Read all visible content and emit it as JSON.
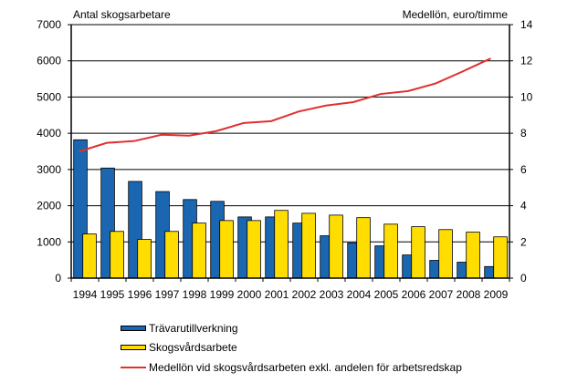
{
  "chart_data": {
    "type": "bar",
    "left_axis_title": "Antal skogsarbetare",
    "right_axis_title": "Medellön, euro/timme",
    "categories": [
      "1994",
      "1995",
      "1996",
      "1997",
      "1998",
      "1999",
      "2000",
      "2001",
      "2002",
      "2003",
      "2004",
      "2005",
      "2006",
      "2007",
      "2008",
      "2009"
    ],
    "ylim_left": [
      0,
      7000
    ],
    "yticks_left": [
      0,
      1000,
      2000,
      3000,
      4000,
      5000,
      6000,
      7000
    ],
    "ylim_right": [
      0,
      14
    ],
    "yticks_right": [
      0,
      2,
      4,
      6,
      8,
      10,
      12,
      14
    ],
    "grid": true,
    "legend_position": "bottom",
    "series": [
      {
        "name": "Trävarutillverkning",
        "type": "bar",
        "axis": "left",
        "color": "#1a66b0",
        "values": [
          3820,
          3040,
          2670,
          2390,
          2170,
          2120,
          1690,
          1690,
          1520,
          1170,
          970,
          890,
          640,
          490,
          440,
          320
        ]
      },
      {
        "name": "Skogsvårdsarbete",
        "type": "bar",
        "axis": "left",
        "color": "#ffdd00",
        "values": [
          1220,
          1290,
          1070,
          1290,
          1520,
          1590,
          1590,
          1870,
          1790,
          1740,
          1670,
          1490,
          1420,
          1340,
          1270,
          1140
        ]
      },
      {
        "name": "Medellön vid skogsvårdsarbeten exkl. andelen för arbetsredskap",
        "type": "line",
        "axis": "right",
        "color": "#e03030",
        "values": [
          7.0,
          7.47,
          7.57,
          7.92,
          7.87,
          8.12,
          8.57,
          8.67,
          9.2,
          9.53,
          9.72,
          10.17,
          10.33,
          10.75,
          11.42,
          12.12
        ]
      }
    ]
  }
}
